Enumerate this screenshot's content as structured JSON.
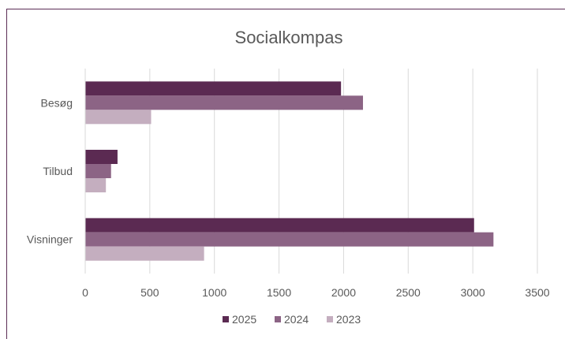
{
  "chart_data": {
    "type": "bar",
    "orientation": "horizontal",
    "title": "Socialkompas",
    "categories": [
      "Besøg",
      "Tilbud",
      "Visninger"
    ],
    "series": [
      {
        "name": "2025",
        "values": [
          1980,
          250,
          3010
        ],
        "color": "#5b2a52"
      },
      {
        "name": "2024",
        "values": [
          2150,
          200,
          3160
        ],
        "color": "#8c6485"
      },
      {
        "name": "2023",
        "values": [
          510,
          160,
          920
        ],
        "color": "#c4aebf"
      }
    ],
    "xlim": [
      0,
      3500
    ],
    "xticks": [
      0,
      500,
      1000,
      1500,
      2000,
      2500,
      3000,
      3500
    ],
    "grid": true,
    "legend_position": "bottom"
  }
}
